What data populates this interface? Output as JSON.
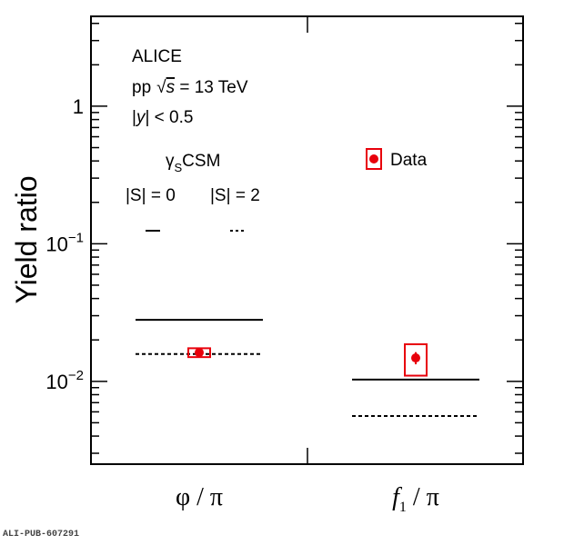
{
  "chart_data": {
    "type": "scatter",
    "yscale": "log",
    "ylim": [
      0.0025,
      4.5
    ],
    "ylabel": "Yield ratio",
    "categories": [
      "φ / π",
      "f1 / π"
    ],
    "yticks": [
      {
        "value": 1,
        "base": "1",
        "exp": ""
      },
      {
        "value": 0.1,
        "base": "10",
        "exp": "−1"
      },
      {
        "value": 0.01,
        "base": "10",
        "exp": "−2"
      }
    ],
    "annotations": {
      "experiment": "ALICE",
      "system_pre": "pp",
      "system_sqrt": "√",
      "system_s": "s",
      "system_post": " = 13 TeV",
      "rap_pre": "|",
      "rap_y": "y",
      "rap_post": "| < 0.5",
      "model_gamma": "γ",
      "model_sub": "S",
      "model_name": "CSM"
    },
    "legend": {
      "data_label": "Data",
      "s0_label": "|S| = 0",
      "s2_label": "|S| = 2"
    },
    "series": [
      {
        "name": "Data",
        "values": [
          0.0162,
          0.0148
        ],
        "stat_err": [
          0.0004,
          0.0015
        ],
        "syst_err": [
          0.0012,
          0.0038
        ]
      },
      {
        "name": "|S| = 0",
        "values": [
          0.028,
          0.0103
        ]
      },
      {
        "name": "|S| = 2",
        "values": [
          0.0158,
          0.0056
        ]
      }
    ],
    "colors": {
      "data": "#e8000b",
      "model": "#000000"
    },
    "grid": false,
    "publication_id": "ALI-PUB-607291"
  }
}
